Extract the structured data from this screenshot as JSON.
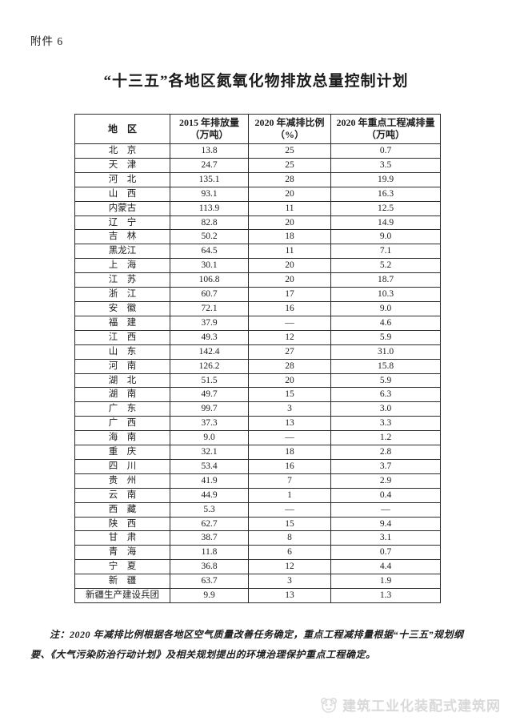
{
  "page": {
    "attachment_label": "附件 6",
    "title": "“十三五”各地区氮氧化物排放总量控制计划",
    "note": "注：2020 年减排比例根据各地区空气质量改善任务确定，重点工程减排量根据“十三五”规划纲要、《大气污染防治行动计划》及相关规划提出的环境治理保护重点工程确定。",
    "background_color": "#ffffff",
    "text_color": "#1c1c1c",
    "border_color": "#2b2b2b",
    "watermark_color": "#d9d9d9"
  },
  "watermark": {
    "icon": "panda-logo-icon",
    "text": "建筑工业化装配式建筑网"
  },
  "table": {
    "columns": [
      {
        "line1": "地　区",
        "line2": ""
      },
      {
        "line1": "2015 年排放量",
        "line2": "（万吨）"
      },
      {
        "line1": "2020 年减排比例",
        "line2": "（%）"
      },
      {
        "line1": "2020 年重点工程减排量",
        "line2": "（万吨）"
      }
    ],
    "rows": [
      [
        "北　京",
        "13.8",
        "25",
        "0.7"
      ],
      [
        "天　津",
        "24.7",
        "25",
        "3.5"
      ],
      [
        "河　北",
        "135.1",
        "28",
        "19.9"
      ],
      [
        "山　西",
        "93.1",
        "20",
        "16.3"
      ],
      [
        "内蒙古",
        "113.9",
        "11",
        "12.5"
      ],
      [
        "辽　宁",
        "82.8",
        "20",
        "14.9"
      ],
      [
        "吉　林",
        "50.2",
        "18",
        "9.0"
      ],
      [
        "黑龙江",
        "64.5",
        "11",
        "7.1"
      ],
      [
        "上　海",
        "30.1",
        "20",
        "5.2"
      ],
      [
        "江　苏",
        "106.8",
        "20",
        "18.7"
      ],
      [
        "浙　江",
        "60.7",
        "17",
        "10.3"
      ],
      [
        "安　徽",
        "72.1",
        "16",
        "9.0"
      ],
      [
        "福　建",
        "37.9",
        "—",
        "4.6"
      ],
      [
        "江　西",
        "49.3",
        "12",
        "5.9"
      ],
      [
        "山　东",
        "142.4",
        "27",
        "31.0"
      ],
      [
        "河　南",
        "126.2",
        "28",
        "15.8"
      ],
      [
        "湖　北",
        "51.5",
        "20",
        "5.9"
      ],
      [
        "湖　南",
        "49.7",
        "15",
        "6.3"
      ],
      [
        "广　东",
        "99.7",
        "3",
        "3.0"
      ],
      [
        "广　西",
        "37.3",
        "13",
        "3.3"
      ],
      [
        "海　南",
        "9.0",
        "—",
        "1.2"
      ],
      [
        "重　庆",
        "32.1",
        "18",
        "2.8"
      ],
      [
        "四　川",
        "53.4",
        "16",
        "3.7"
      ],
      [
        "贵　州",
        "41.9",
        "7",
        "2.9"
      ],
      [
        "云　南",
        "44.9",
        "1",
        "0.4"
      ],
      [
        "西　藏",
        "5.3",
        "—",
        "—"
      ],
      [
        "陕　西",
        "62.7",
        "15",
        "9.4"
      ],
      [
        "甘　肃",
        "38.7",
        "8",
        "3.1"
      ],
      [
        "青　海",
        "11.8",
        "6",
        "0.7"
      ],
      [
        "宁　夏",
        "36.8",
        "12",
        "4.4"
      ],
      [
        "新　疆",
        "63.7",
        "3",
        "1.9"
      ],
      [
        "新疆生产建设兵团",
        "9.9",
        "13",
        "1.3"
      ]
    ]
  }
}
